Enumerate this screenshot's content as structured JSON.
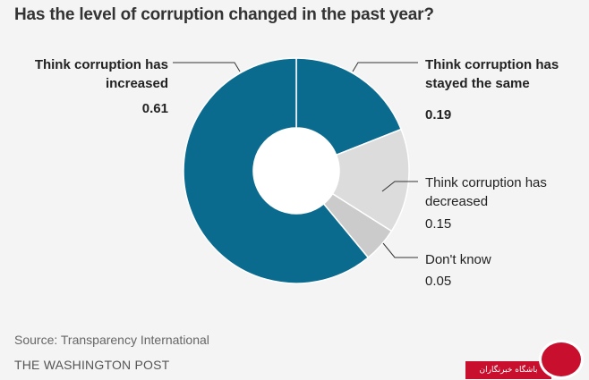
{
  "header": {
    "title": "Has the level of corruption changed in the past year?"
  },
  "chart_data": {
    "type": "pie",
    "title": "Has the level of corruption changed in the past year?",
    "slices": [
      {
        "label": "Think corruption has stayed the same",
        "value": 0.19,
        "value_text": "0.19",
        "color": "#0a6b8f"
      },
      {
        "label": "Think corruption has decreased",
        "value": 0.15,
        "value_text": "0.15",
        "color": "#dcdcdc"
      },
      {
        "label": "Don't know",
        "value": 0.05,
        "value_text": "0.05",
        "color": "#cbcbcb"
      },
      {
        "label": "Think corruption has increased",
        "value": 0.61,
        "value_text": "0.61",
        "color": "#0a6b8f"
      }
    ]
  },
  "footer": {
    "source": "Source: Transparency International",
    "brand": "THE WASHINGTON POST"
  },
  "watermark": {
    "text": "باشگاه خبرنگاران",
    "color": "#c8102e"
  }
}
